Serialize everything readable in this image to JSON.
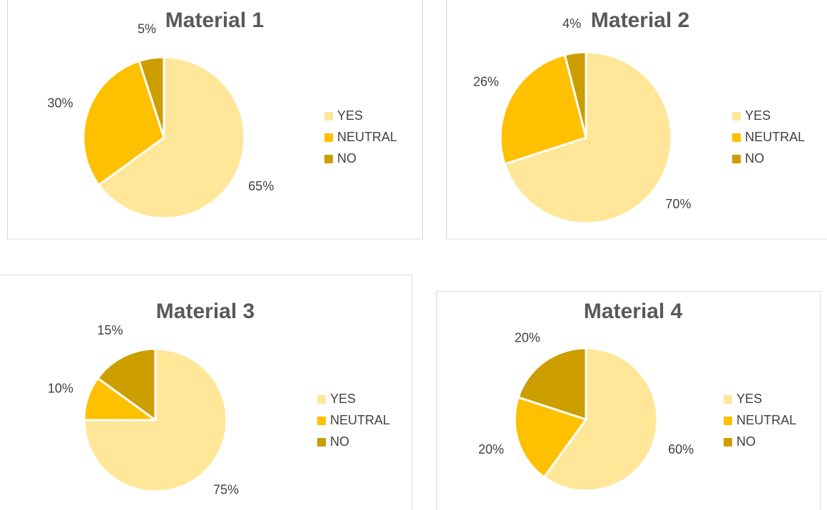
{
  "chart_data": [
    {
      "type": "pie",
      "title": "Material 1",
      "categories": [
        "YES",
        "NEUTRAL",
        "NO"
      ],
      "values": [
        65,
        30,
        5
      ],
      "value_labels": [
        "65%",
        "30%",
        "5%"
      ],
      "colors": [
        "#FFE699",
        "#FFC000",
        "#CC9E00"
      ]
    },
    {
      "type": "pie",
      "title": "Material 2",
      "categories": [
        "YES",
        "NEUTRAL",
        "NO"
      ],
      "values": [
        70,
        26,
        4
      ],
      "value_labels": [
        "70%",
        "26%",
        "4%"
      ],
      "colors": [
        "#FFE699",
        "#FFC000",
        "#CC9E00"
      ]
    },
    {
      "type": "pie",
      "title": "Material 3",
      "categories": [
        "YES",
        "NEUTRAL",
        "NO"
      ],
      "values": [
        75,
        10,
        15
      ],
      "value_labels": [
        "75%",
        "10%",
        "15%"
      ],
      "colors": [
        "#FFE699",
        "#FFC000",
        "#CC9E00"
      ]
    },
    {
      "type": "pie",
      "title": "Material 4",
      "categories": [
        "YES",
        "NEUTRAL",
        "NO"
      ],
      "values": [
        60,
        20,
        20
      ],
      "value_labels": [
        "60%",
        "20%",
        "20%"
      ],
      "colors": [
        "#FFE699",
        "#FFC000",
        "#CC9E00"
      ]
    }
  ]
}
